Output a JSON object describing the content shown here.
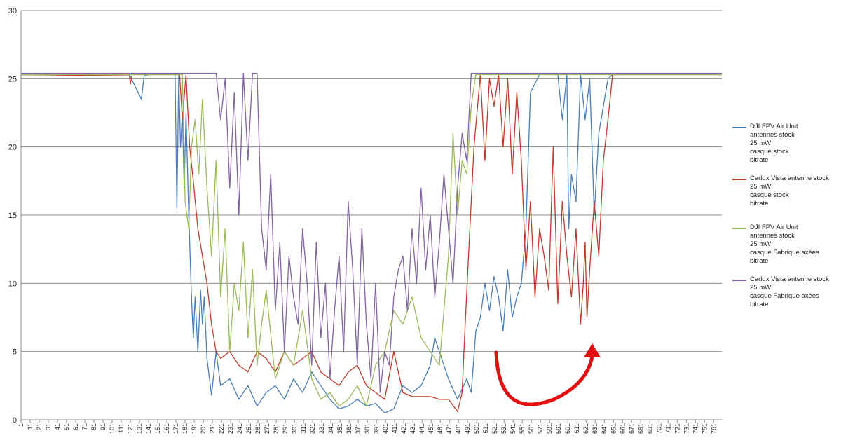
{
  "chart_data": {
    "type": "line",
    "ylim": [
      0,
      30
    ],
    "y_ticks": [
      0,
      5,
      10,
      15,
      20,
      25,
      30
    ],
    "x_range": [
      1,
      770
    ],
    "x_ticks": [
      1,
      11,
      21,
      31,
      41,
      51,
      61,
      71,
      81,
      91,
      101,
      111,
      121,
      131,
      141,
      151,
      161,
      171,
      181,
      191,
      201,
      211,
      221,
      231,
      241,
      251,
      261,
      271,
      281,
      291,
      301,
      311,
      321,
      331,
      341,
      351,
      361,
      371,
      381,
      391,
      401,
      411,
      421,
      431,
      441,
      451,
      461,
      471,
      481,
      491,
      501,
      511,
      521,
      531,
      541,
      551,
      561,
      571,
      581,
      591,
      601,
      611,
      621,
      631,
      641,
      651,
      661,
      671,
      681,
      691,
      701,
      711,
      721,
      731,
      741,
      751,
      761
    ],
    "grid": "horizontal",
    "legend_position": "right",
    "series": [
      {
        "name_lines": [
          "DJI FPV Air Unit",
          "antennes stock",
          "25 mW",
          "casque stock",
          "bitrate"
        ],
        "color": "#4a7ebb",
        "x": [
          1,
          120,
          133,
          136,
          140,
          145,
          170,
          172,
          174,
          176,
          178,
          180,
          182,
          185,
          188,
          190,
          192,
          195,
          198,
          200,
          202,
          205,
          210,
          215,
          220,
          230,
          240,
          250,
          260,
          270,
          280,
          290,
          300,
          310,
          320,
          330,
          340,
          350,
          360,
          370,
          380,
          390,
          400,
          410,
          420,
          430,
          440,
          450,
          455,
          460,
          470,
          480,
          490,
          495,
          500,
          505,
          510,
          515,
          520,
          525,
          530,
          535,
          540,
          545,
          550,
          555,
          560,
          570,
          580,
          590,
          595,
          600,
          602,
          605,
          610,
          615,
          620,
          625,
          630,
          635,
          640,
          645,
          650,
          660,
          700,
          770
        ],
        "y": [
          25.3,
          25.3,
          23.5,
          25.2,
          25.3,
          25.3,
          25.3,
          15.5,
          25.3,
          20.0,
          22.5,
          17.0,
          22.5,
          15.0,
          9.0,
          6.0,
          9.0,
          5.0,
          9.5,
          7.0,
          9.0,
          4.5,
          1.8,
          5.0,
          2.5,
          3.0,
          1.5,
          2.5,
          1.0,
          2.0,
          2.5,
          1.5,
          3.0,
          2.0,
          3.5,
          2.5,
          1.5,
          0.8,
          1.0,
          1.5,
          1.0,
          1.2,
          0.5,
          0.8,
          2.5,
          2.0,
          2.5,
          4.0,
          6.0,
          5.0,
          3.0,
          1.5,
          3.0,
          2.0,
          6.5,
          7.5,
          10.0,
          8.0,
          10.5,
          9.0,
          6.5,
          11.0,
          7.5,
          9.0,
          10.0,
          14.0,
          24.0,
          25.3,
          25.3,
          25.3,
          22.0,
          25.3,
          14.0,
          18.0,
          16.0,
          25.3,
          22.0,
          25.0,
          15.0,
          21.0,
          23.0,
          25.0,
          25.3,
          25.3,
          25.3,
          25.3
        ]
      },
      {
        "name_lines": [
          "Caddx Vista antenne stock",
          "25 mW",
          " casque stock",
          "bitrate"
        ],
        "color": "#c0392b",
        "x": [
          1,
          120,
          121,
          123,
          175,
          178,
          182,
          186,
          190,
          195,
          200,
          205,
          210,
          215,
          220,
          230,
          240,
          250,
          260,
          270,
          280,
          290,
          300,
          310,
          320,
          330,
          340,
          350,
          360,
          370,
          380,
          390,
          400,
          410,
          420,
          430,
          440,
          450,
          460,
          470,
          480,
          485,
          488,
          492,
          498,
          505,
          510,
          515,
          520,
          525,
          530,
          535,
          540,
          545,
          550,
          555,
          560,
          565,
          570,
          575,
          580,
          585,
          590,
          595,
          600,
          605,
          610,
          615,
          618,
          620,
          622,
          625,
          630,
          635,
          640,
          645,
          650,
          655,
          700,
          770
        ],
        "y": [
          25.3,
          25.2,
          24.6,
          25.3,
          25.3,
          22.0,
          25.3,
          20.0,
          17.5,
          14.0,
          12.0,
          10.0,
          7.0,
          5.0,
          4.5,
          5.0,
          4.0,
          3.5,
          5.0,
          4.5,
          3.5,
          5.0,
          4.0,
          4.5,
          5.0,
          3.5,
          3.0,
          2.5,
          3.5,
          4.0,
          2.5,
          2.0,
          1.5,
          5.0,
          2.0,
          1.7,
          1.7,
          1.7,
          1.5,
          1.5,
          0.6,
          2.0,
          6.5,
          12.0,
          20.0,
          25.3,
          19.0,
          25.0,
          23.0,
          25.3,
          20.0,
          25.0,
          18.0,
          24.0,
          19.0,
          11.0,
          16.0,
          9.0,
          14.0,
          12.0,
          9.5,
          20.0,
          8.5,
          16.0,
          12.0,
          9.0,
          14.0,
          7.0,
          10.0,
          13.0,
          7.5,
          11.0,
          16.0,
          12.0,
          19.0,
          22.0,
          25.3,
          25.3,
          25.3,
          25.3
        ]
      },
      {
        "name_lines": [
          "DJI FPV Air Unit",
          "antennes stock",
          "25 mW",
          " casque Fabrique axées",
          "bitrate"
        ],
        "color": "#9bbb59",
        "x": [
          1,
          170,
          178,
          181,
          185,
          188,
          192,
          196,
          200,
          205,
          210,
          215,
          220,
          225,
          230,
          235,
          240,
          245,
          250,
          255,
          260,
          265,
          270,
          280,
          290,
          300,
          310,
          320,
          330,
          340,
          350,
          360,
          370,
          380,
          390,
          400,
          410,
          420,
          430,
          440,
          450,
          460,
          470,
          475,
          480,
          485,
          490,
          495,
          500,
          505,
          510,
          515,
          520,
          770
        ],
        "y": [
          25.3,
          25.3,
          25.3,
          16.0,
          14.0,
          20.0,
          22.0,
          18.0,
          23.5,
          17.0,
          12.0,
          19.0,
          9.0,
          14.0,
          5.0,
          10.0,
          8.0,
          13.0,
          6.0,
          11.0,
          4.0,
          7.0,
          9.5,
          3.0,
          5.0,
          4.0,
          8.0,
          3.0,
          1.5,
          2.0,
          1.0,
          1.5,
          2.5,
          1.0,
          4.0,
          5.0,
          8.0,
          7.0,
          9.0,
          6.0,
          5.0,
          4.0,
          12.0,
          21.0,
          15.0,
          19.0,
          18.0,
          23.0,
          25.3,
          25.3,
          25.3,
          25.3,
          25.3,
          25.3
        ]
      },
      {
        "name_lines": [
          "Caddx Vista antenne stock",
          "25 mW",
          " casque Fabrique axées",
          "bitrate"
        ],
        "color": "#8064a2",
        "x": [
          1,
          200,
          205,
          210,
          215,
          220,
          225,
          230,
          235,
          240,
          245,
          250,
          255,
          260,
          265,
          270,
          275,
          280,
          285,
          290,
          295,
          300,
          305,
          310,
          315,
          320,
          325,
          330,
          335,
          340,
          345,
          350,
          355,
          360,
          365,
          370,
          375,
          380,
          385,
          390,
          395,
          400,
          405,
          410,
          415,
          420,
          425,
          430,
          435,
          440,
          445,
          450,
          455,
          460,
          465,
          470,
          475,
          480,
          485,
          490,
          495,
          500,
          505,
          510,
          770
        ],
        "y": [
          25.4,
          25.4,
          25.4,
          25.4,
          25.4,
          22.0,
          25.0,
          17.0,
          24.0,
          15.0,
          25.4,
          19.0,
          25.4,
          25.4,
          14.0,
          11.0,
          18.0,
          8.0,
          13.0,
          5.0,
          12.0,
          9.0,
          7.0,
          14.0,
          10.0,
          4.0,
          13.0,
          6.0,
          10.0,
          3.0,
          8.0,
          12.0,
          5.0,
          16.0,
          11.0,
          4.0,
          14.0,
          7.0,
          3.0,
          10.0,
          2.0,
          5.0,
          4.0,
          9.0,
          11.0,
          12.0,
          8.0,
          14.0,
          10.0,
          17.0,
          11.0,
          15.0,
          9.0,
          13.0,
          18.0,
          14.0,
          10.0,
          17.0,
          21.0,
          19.0,
          25.4,
          25.4,
          25.4,
          25.4,
          25.4
        ]
      }
    ]
  }
}
